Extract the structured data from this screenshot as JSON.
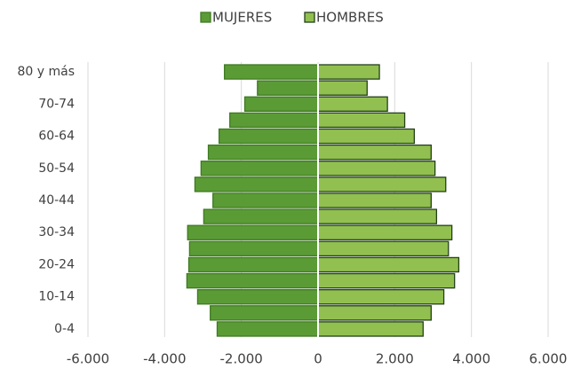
{
  "chart_data": {
    "type": "pyramid",
    "categories": [
      "0-4",
      null,
      "10-14",
      null,
      "20-24",
      null,
      "30-34",
      null,
      "40-44",
      null,
      "50-54",
      null,
      "60-64",
      null,
      "70-74",
      null,
      "80 y más"
    ],
    "series": [
      {
        "name": "MUJERES",
        "color": "#5b9b36",
        "values": [
          -2630,
          -2810,
          -3140,
          -3420,
          -3370,
          -3350,
          -3400,
          -2980,
          -2740,
          -3210,
          -3050,
          -2860,
          -2580,
          -2300,
          -1910,
          -1580,
          -2440
        ]
      },
      {
        "name": "HOMBRES",
        "color": "#92c050",
        "values": [
          2740,
          2950,
          3280,
          3560,
          3670,
          3400,
          3490,
          3090,
          2950,
          3330,
          3050,
          2950,
          2510,
          2260,
          1810,
          1280,
          1600
        ]
      }
    ],
    "xlim": [
      -6000,
      6000
    ],
    "xticks": [
      {
        "value": -6000,
        "label": "-6.000"
      },
      {
        "value": -4000,
        "label": "-4.000"
      },
      {
        "value": -2000,
        "label": "-2.000"
      },
      0,
      {
        "value": 2000,
        "label": "2.000"
      },
      {
        "value": 4000,
        "label": "4.000"
      },
      {
        "value": 6000,
        "label": "6.000"
      }
    ],
    "grid": true,
    "legend": "top"
  }
}
